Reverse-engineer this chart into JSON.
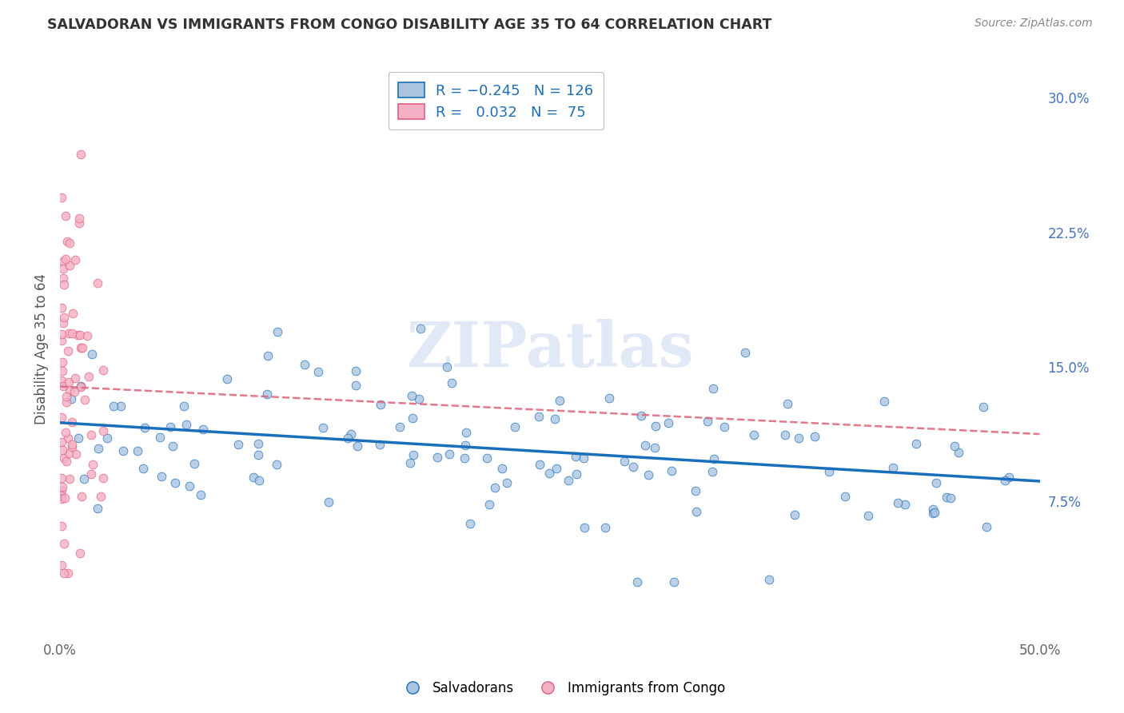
{
  "title": "SALVADORAN VS IMMIGRANTS FROM CONGO DISABILITY AGE 35 TO 64 CORRELATION CHART",
  "source": "Source: ZipAtlas.com",
  "ylabel": "Disability Age 35 to 64",
  "xlim": [
    0.0,
    0.5
  ],
  "ylim": [
    0.0,
    0.32
  ],
  "yticks_right": [
    0.075,
    0.15,
    0.225,
    0.3
  ],
  "yticklabels_right": [
    "7.5%",
    "15.0%",
    "22.5%",
    "30.0%"
  ],
  "R_salv": -0.245,
  "N_salv": 126,
  "R_congo": 0.032,
  "N_congo": 75,
  "color_salv": "#aac4e0",
  "color_congo": "#f4b0c4",
  "line_color_salv": "#1a6fbd",
  "line_color_congo": "#e0607a",
  "watermark": "ZIPatlas",
  "legend_label_salv": "Salvadorans",
  "legend_label_congo": "Immigrants from Congo",
  "grid_color": "#cccccc",
  "title_color": "#333333",
  "source_color": "#888888",
  "ylabel_color": "#555555"
}
